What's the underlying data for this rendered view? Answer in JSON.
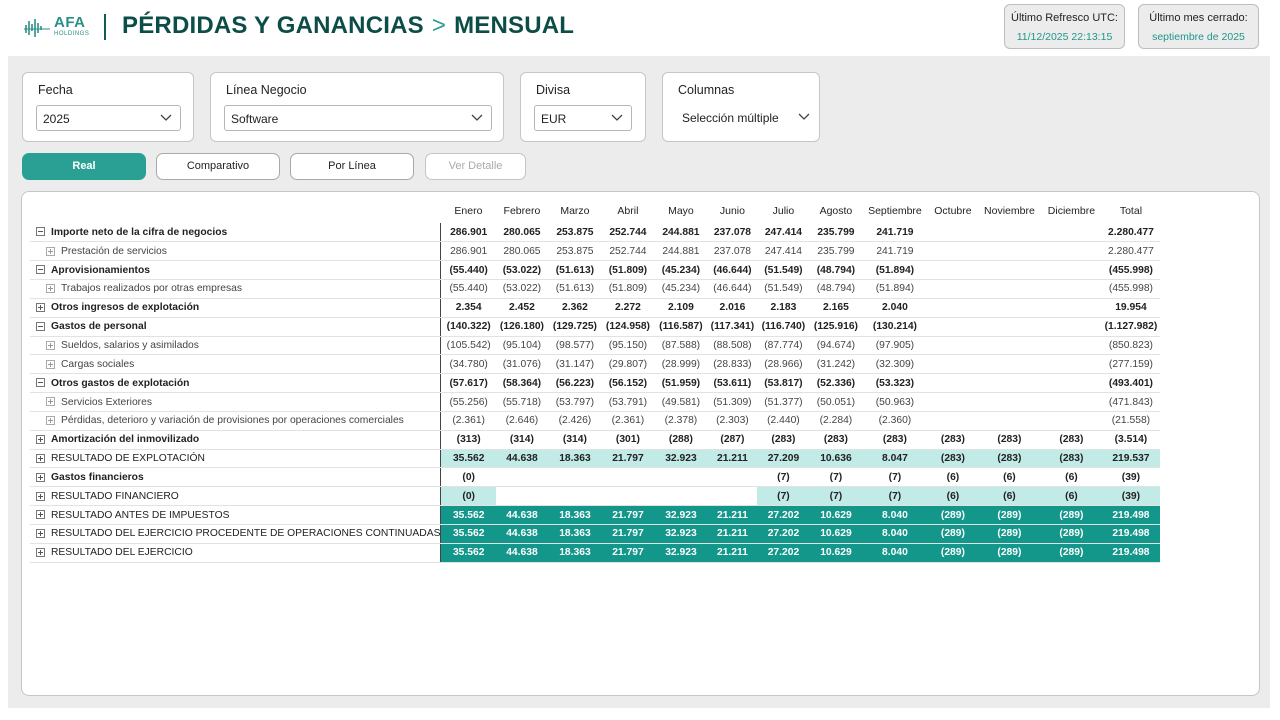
{
  "header": {
    "logo_text": "AFA",
    "logo_sub": "HOLDINGS",
    "title_part1": "PÉRDIDAS Y GANANCIAS",
    "separator": ">",
    "title_part2": "MENSUAL",
    "refresh_label": "Último Refresco UTC:",
    "refresh_value": "11/12/2025 22:13:15",
    "closed_label": "Último mes cerrado:",
    "closed_value": "septiembre de 2025"
  },
  "filters": {
    "fecha": {
      "label": "Fecha",
      "value": "2025"
    },
    "linea": {
      "label": "Línea Negocio",
      "value": "Software"
    },
    "divisa": {
      "label": "Divisa",
      "value": "EUR"
    },
    "columnas": {
      "label": "Columnas",
      "value": "Selección múltiple"
    }
  },
  "buttons": {
    "real": "Real",
    "comparativo": "Comparativo",
    "por_linea": "Por Línea",
    "ver_detalle": "Ver Detalle"
  },
  "colors": {
    "accent": "#2aa095",
    "highlight": "#c2ebe7",
    "dark_row": "#14978b",
    "title": "#0d4d47"
  },
  "table": {
    "columns": [
      "Enero",
      "Febrero",
      "Marzo",
      "Abril",
      "Mayo",
      "Junio",
      "Julio",
      "Agosto",
      "Septiembre",
      "Octubre",
      "Noviembre",
      "Diciembre",
      "Total"
    ],
    "rows": [
      {
        "label": "Importe neto de la cifra de negocios",
        "values": [
          "286.901",
          "280.065",
          "253.875",
          "252.744",
          "244.881",
          "237.078",
          "247.414",
          "235.799",
          "241.719",
          "",
          "",
          "",
          "2.280.477"
        ]
      },
      {
        "label": "Prestación de servicios",
        "values": [
          "286.901",
          "280.065",
          "253.875",
          "252.744",
          "244.881",
          "237.078",
          "247.414",
          "235.799",
          "241.719",
          "",
          "",
          "",
          "2.280.477"
        ]
      },
      {
        "label": "Aprovisionamientos",
        "values": [
          "(55.440)",
          "(53.022)",
          "(51.613)",
          "(51.809)",
          "(45.234)",
          "(46.644)",
          "(51.549)",
          "(48.794)",
          "(51.894)",
          "",
          "",
          "",
          "(455.998)"
        ]
      },
      {
        "label": "Trabajos realizados por otras empresas",
        "values": [
          "(55.440)",
          "(53.022)",
          "(51.613)",
          "(51.809)",
          "(45.234)",
          "(46.644)",
          "(51.549)",
          "(48.794)",
          "(51.894)",
          "",
          "",
          "",
          "(455.998)"
        ]
      },
      {
        "label": "Otros ingresos de explotación",
        "values": [
          "2.354",
          "2.452",
          "2.362",
          "2.272",
          "2.109",
          "2.016",
          "2.183",
          "2.165",
          "2.040",
          "",
          "",
          "",
          "19.954"
        ]
      },
      {
        "label": "Gastos de personal",
        "values": [
          "(140.322)",
          "(126.180)",
          "(129.725)",
          "(124.958)",
          "(116.587)",
          "(117.341)",
          "(116.740)",
          "(125.916)",
          "(130.214)",
          "",
          "",
          "",
          "(1.127.982)"
        ]
      },
      {
        "label": "Sueldos, salarios y asimilados",
        "values": [
          "(105.542)",
          "(95.104)",
          "(98.577)",
          "(95.150)",
          "(87.588)",
          "(88.508)",
          "(87.774)",
          "(94.674)",
          "(97.905)",
          "",
          "",
          "",
          "(850.823)"
        ]
      },
      {
        "label": "Cargas sociales",
        "values": [
          "(34.780)",
          "(31.076)",
          "(31.147)",
          "(29.807)",
          "(28.999)",
          "(28.833)",
          "(28.966)",
          "(31.242)",
          "(32.309)",
          "",
          "",
          "",
          "(277.159)"
        ]
      },
      {
        "label": "Otros gastos de explotación",
        "values": [
          "(57.617)",
          "(58.364)",
          "(56.223)",
          "(56.152)",
          "(51.959)",
          "(53.611)",
          "(53.817)",
          "(52.336)",
          "(53.323)",
          "",
          "",
          "",
          "(493.401)"
        ]
      },
      {
        "label": "Servicios Exteriores",
        "values": [
          "(55.256)",
          "(55.718)",
          "(53.797)",
          "(53.791)",
          "(49.581)",
          "(51.309)",
          "(51.377)",
          "(50.051)",
          "(50.963)",
          "",
          "",
          "",
          "(471.843)"
        ]
      },
      {
        "label": "Pérdidas, deterioro y variación de provisiones por operaciones comerciales",
        "values": [
          "(2.361)",
          "(2.646)",
          "(2.426)",
          "(2.361)",
          "(2.378)",
          "(2.303)",
          "(2.440)",
          "(2.284)",
          "(2.360)",
          "",
          "",
          "",
          "(21.558)"
        ]
      },
      {
        "label": "Amortización del inmovilizado",
        "values": [
          "(313)",
          "(314)",
          "(314)",
          "(301)",
          "(288)",
          "(287)",
          "(283)",
          "(283)",
          "(283)",
          "(283)",
          "(283)",
          "(283)",
          "(3.514)"
        ]
      },
      {
        "label": "RESULTADO DE EXPLOTACIÓN",
        "values": [
          "35.562",
          "44.638",
          "18.363",
          "21.797",
          "32.923",
          "21.211",
          "27.209",
          "10.636",
          "8.047",
          "(283)",
          "(283)",
          "(283)",
          "219.537"
        ]
      },
      {
        "label": "Gastos financieros",
        "values": [
          "(0)",
          "",
          "",
          "",
          "",
          "",
          "(7)",
          "(7)",
          "(7)",
          "(6)",
          "(6)",
          "(6)",
          "(39)"
        ]
      },
      {
        "label": "RESULTADO FINANCIERO",
        "values": [
          "(0)",
          "",
          "",
          "",
          "",
          "",
          "(7)",
          "(7)",
          "(7)",
          "(6)",
          "(6)",
          "(6)",
          "(39)"
        ]
      },
      {
        "label": "RESULTADO ANTES DE IMPUESTOS",
        "values": [
          "35.562",
          "44.638",
          "18.363",
          "21.797",
          "32.923",
          "21.211",
          "27.202",
          "10.629",
          "8.040",
          "(289)",
          "(289)",
          "(289)",
          "219.498"
        ]
      },
      {
        "label": "RESULTADO DEL EJERCICIO PROCEDENTE DE OPERACIONES CONTINUADAS",
        "values": [
          "35.562",
          "44.638",
          "18.363",
          "21.797",
          "32.923",
          "21.211",
          "27.202",
          "10.629",
          "8.040",
          "(289)",
          "(289)",
          "(289)",
          "219.498"
        ]
      },
      {
        "label": "RESULTADO DEL EJERCICIO",
        "values": [
          "35.562",
          "44.638",
          "18.363",
          "21.797",
          "32.923",
          "21.211",
          "27.202",
          "10.629",
          "8.040",
          "(289)",
          "(289)",
          "(289)",
          "219.498"
        ]
      }
    ]
  }
}
